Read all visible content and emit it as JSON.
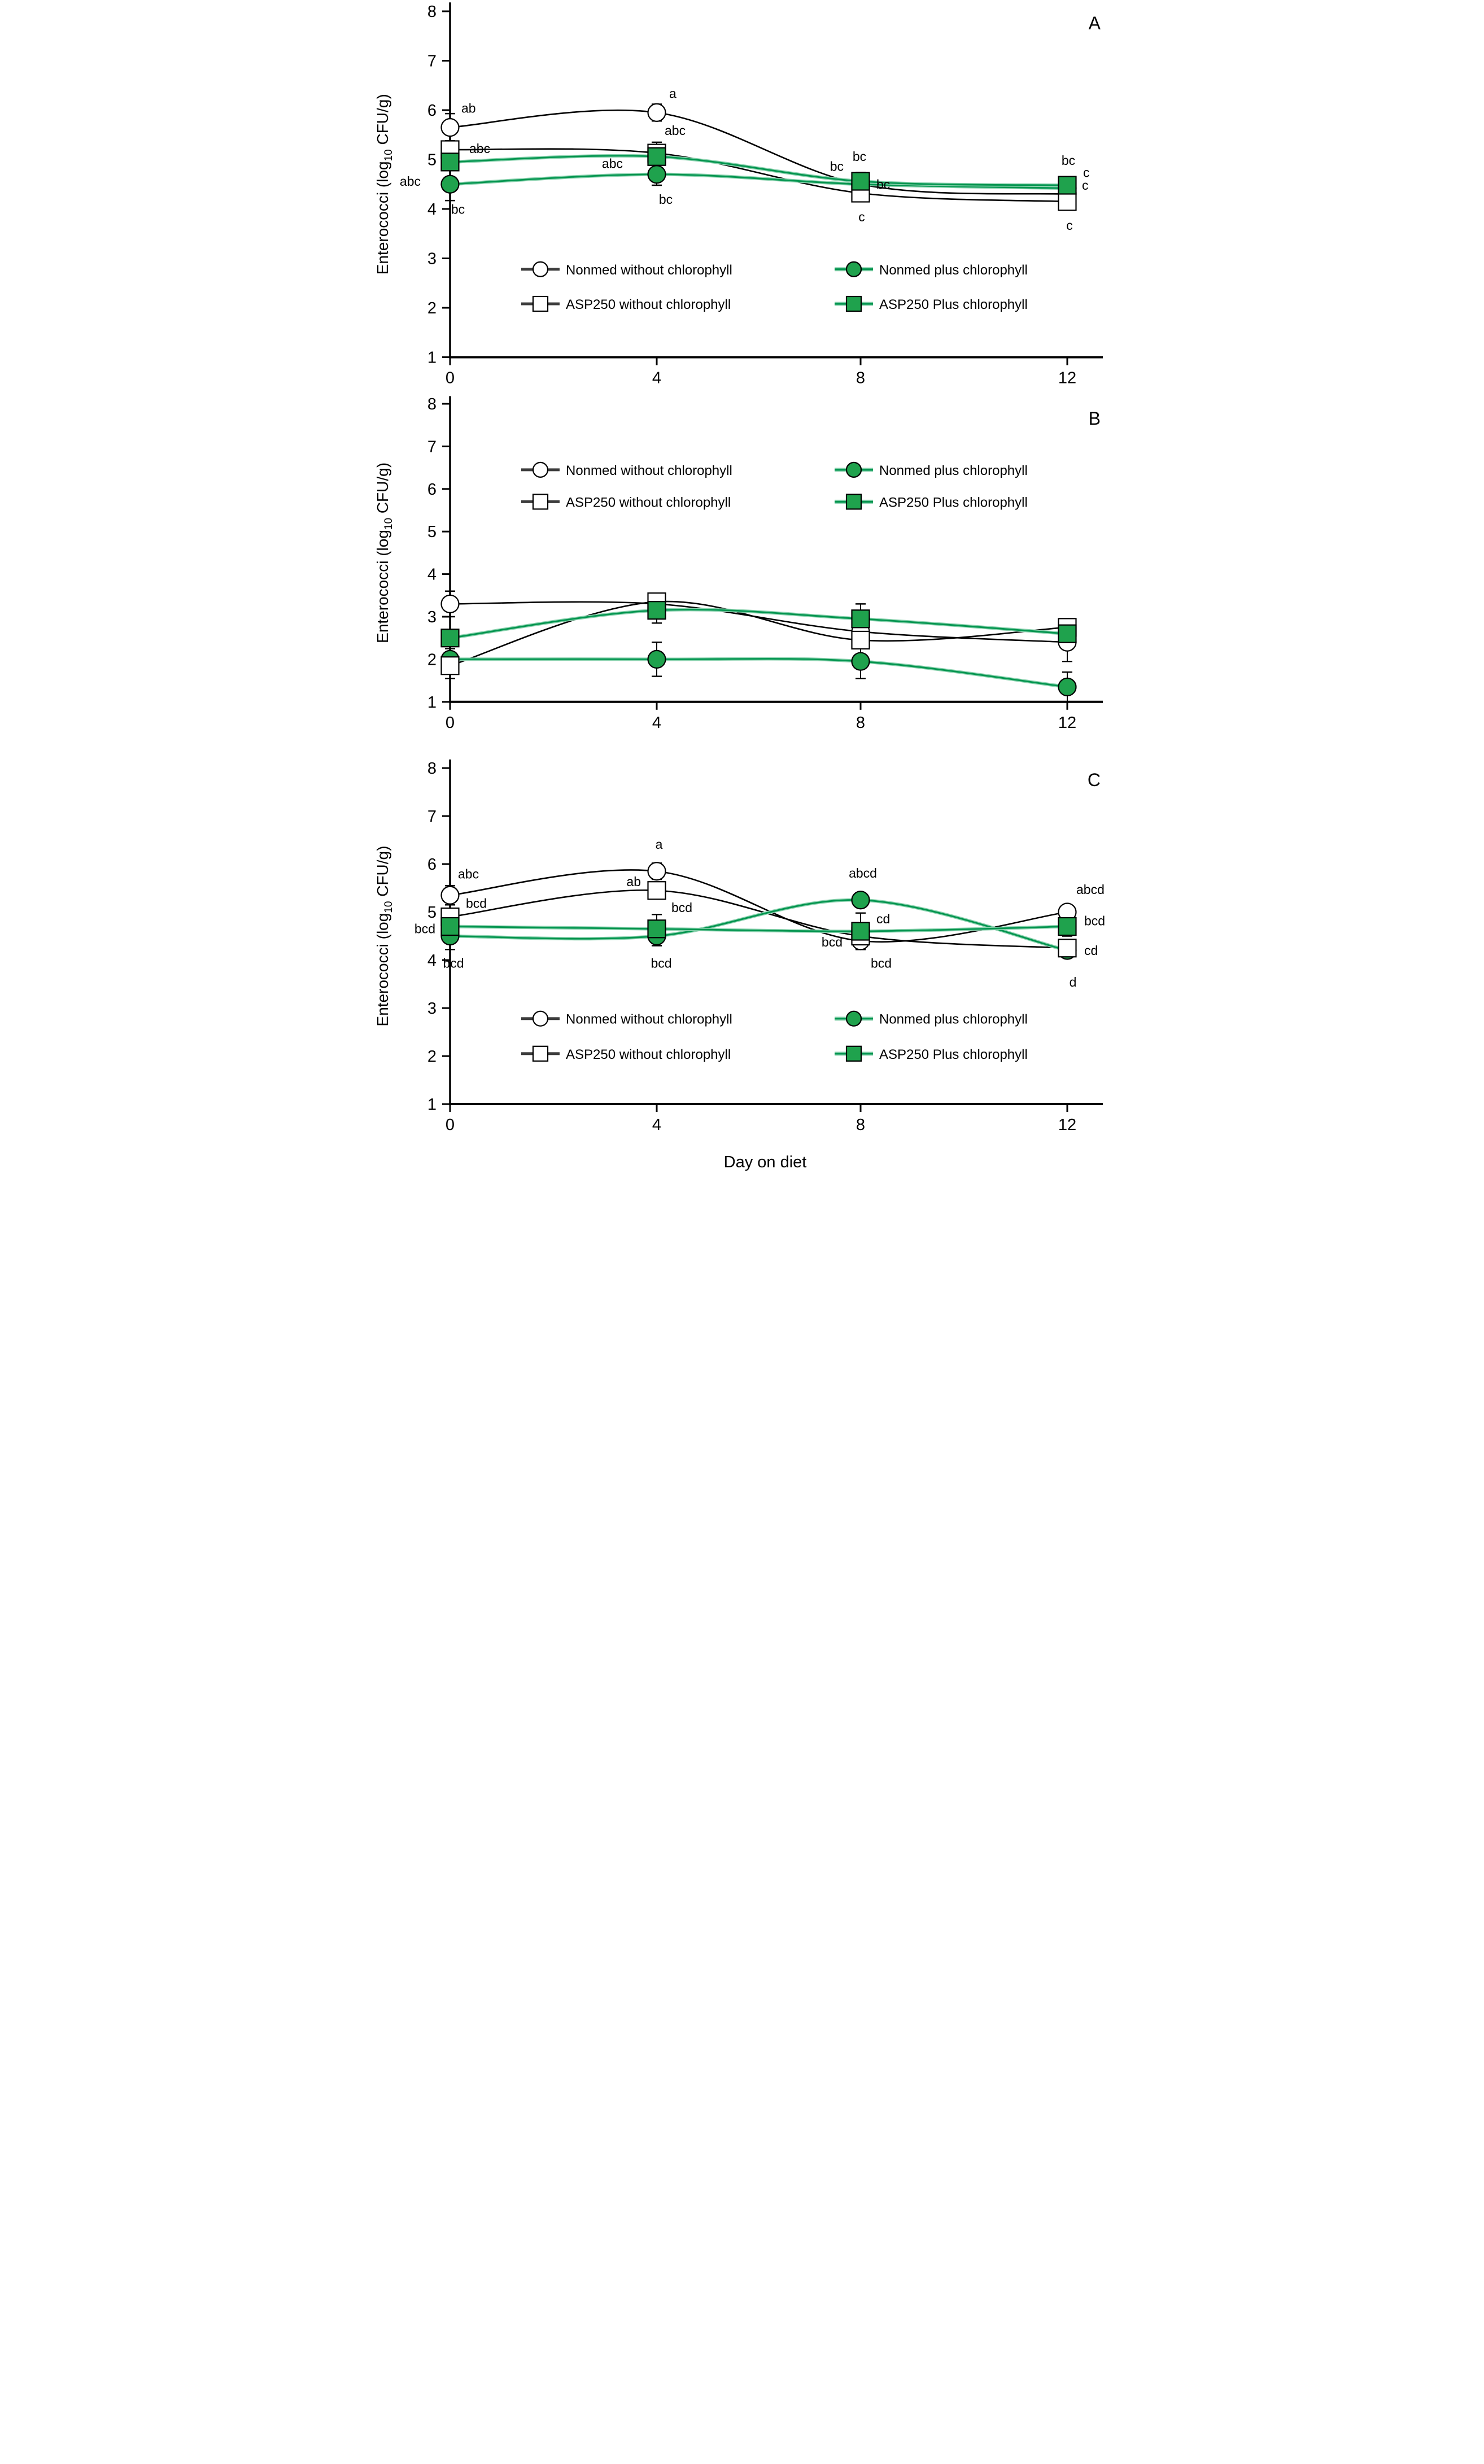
{
  "figure": {
    "background": "#ffffff",
    "y_axis_label_parts": [
      "Enterococci (log",
      "10",
      " CFU/g)"
    ],
    "x_axis_label": "Day on diet"
  },
  "colors": {
    "black": "#000000",
    "green_line": "#00944e",
    "green_glow": "#8ad2ae",
    "green_fill": "#1fa24d",
    "white_fill": "#ffffff",
    "legend_line_dark": "#3c3c3c"
  },
  "series_meta": [
    {
      "id": "nonmed_wo",
      "label": "Nonmed without chlorophyll",
      "marker": "circle",
      "filled": false,
      "color": "black",
      "legend_col": 0,
      "legend_row": 0
    },
    {
      "id": "asp_wo",
      "label": "ASP250 without chlorophyll",
      "marker": "square",
      "filled": false,
      "color": "black",
      "legend_col": 0,
      "legend_row": 1
    },
    {
      "id": "nonmed_plus",
      "label": "Nonmed plus chlorophyll",
      "marker": "circle",
      "filled": true,
      "color": "green",
      "legend_col": 1,
      "legend_row": 0
    },
    {
      "id": "asp_plus",
      "label": "ASP250 Plus chlorophyll",
      "marker": "square",
      "filled": true,
      "color": "green",
      "legend_col": 1,
      "legend_row": 1
    }
  ],
  "chart_data": [
    {
      "panel_letter": "A",
      "type": "line",
      "x": [
        0,
        4,
        8,
        12
      ],
      "x_ticks": [
        0,
        4,
        8,
        12
      ],
      "y_ticks": [
        1,
        2,
        3,
        4,
        5,
        6,
        7,
        8
      ],
      "ylim": [
        1,
        8
      ],
      "grid": false,
      "legend_position": "inside-lower-middle",
      "legend_rows_y": [
        2.78,
        2.08
      ],
      "xlabel": "",
      "series": [
        {
          "id": "nonmed_wo",
          "values": [
            5.65,
            5.95,
            4.5,
            4.3
          ],
          "errors": [
            0.28,
            0.17,
            0.12,
            0.1
          ],
          "labels": [
            "ab",
            "a",
            "bc",
            "c"
          ],
          "label_pos": [
            [
              20,
              -26,
              "start"
            ],
            [
              22,
              -26,
              "start"
            ],
            [
              -30,
              -24,
              "end"
            ],
            [
              26,
              -8,
              "start"
            ]
          ]
        },
        {
          "id": "asp_wo",
          "values": [
            5.2,
            5.13,
            4.32,
            4.15
          ],
          "errors": [
            0.18,
            0.22,
            0.12,
            0.12
          ],
          "labels": [
            "abc",
            "abc",
            "c",
            "c"
          ],
          "label_pos": [
            [
              34,
              6,
              "start"
            ],
            [
              14,
              -32,
              "start"
            ],
            [
              2,
              50,
              "middle"
            ],
            [
              4,
              50,
              "middle"
            ]
          ]
        },
        {
          "id": "nonmed_plus",
          "values": [
            4.5,
            4.7,
            4.5,
            4.42
          ],
          "errors": [
            0.33,
            0.22,
            0.12,
            0.12
          ],
          "labels": [
            "bc",
            "bc",
            "bc",
            "c"
          ],
          "label_pos": [
            [
              14,
              52,
              "middle"
            ],
            [
              16,
              52,
              "middle"
            ],
            [
              28,
              8,
              "start"
            ],
            [
              28,
              -20,
              "start"
            ]
          ]
        },
        {
          "id": "asp_plus",
          "values": [
            4.95,
            5.06,
            4.56,
            4.48
          ],
          "errors": [
            0.15,
            0.15,
            0.18,
            0.12
          ],
          "labels": [
            "abc",
            "abc",
            "bc",
            "bc"
          ],
          "label_pos": [
            [
              -52,
              42,
              "end"
            ],
            [
              -60,
              20,
              "end"
            ],
            [
              -2,
              -36,
              "middle"
            ],
            [
              2,
              -36,
              "middle"
            ]
          ]
        }
      ]
    },
    {
      "panel_letter": "B",
      "type": "line",
      "x": [
        0,
        4,
        8,
        12
      ],
      "x_ticks": [
        0,
        4,
        8,
        12
      ],
      "y_ticks": [
        1,
        2,
        3,
        4,
        5,
        6,
        7,
        8
      ],
      "ylim": [
        1,
        8
      ],
      "grid": false,
      "legend_position": "inside-upper-middle",
      "legend_rows_y": [
        6.45,
        5.7
      ],
      "xlabel": "",
      "series": [
        {
          "id": "nonmed_wo",
          "values": [
            3.3,
            3.3,
            2.65,
            2.4
          ],
          "errors": [
            0.3,
            0.2,
            0.15,
            0.45
          ],
          "labels": [
            "",
            "",
            "",
            ""
          ],
          "label_pos": [
            [
              0,
              0,
              "start"
            ],
            [
              0,
              0,
              "start"
            ],
            [
              0,
              0,
              "start"
            ],
            [
              0,
              0,
              "start"
            ]
          ]
        },
        {
          "id": "asp_wo",
          "values": [
            1.85,
            3.35,
            2.45,
            2.75
          ],
          "errors": [
            0.3,
            0.2,
            0.45,
            0.2
          ],
          "labels": [
            "",
            "",
            "",
            ""
          ],
          "label_pos": [
            [
              0,
              0,
              "start"
            ],
            [
              0,
              0,
              "start"
            ],
            [
              0,
              0,
              "start"
            ],
            [
              0,
              0,
              "start"
            ]
          ]
        },
        {
          "id": "nonmed_plus",
          "values": [
            2.0,
            2.0,
            1.95,
            1.35
          ],
          "errors": [
            0.25,
            0.4,
            0.4,
            0.35
          ],
          "labels": [
            "",
            "",
            "",
            ""
          ],
          "label_pos": [
            [
              0,
              0,
              "start"
            ],
            [
              0,
              0,
              "start"
            ],
            [
              0,
              0,
              "start"
            ],
            [
              0,
              0,
              "start"
            ]
          ]
        },
        {
          "id": "asp_plus",
          "values": [
            2.5,
            3.15,
            2.95,
            2.6
          ],
          "errors": [
            0.2,
            0.3,
            0.35,
            0.25
          ],
          "labels": [
            "",
            "",
            "",
            ""
          ],
          "label_pos": [
            [
              0,
              0,
              "start"
            ],
            [
              0,
              0,
              "start"
            ],
            [
              0,
              0,
              "start"
            ],
            [
              0,
              0,
              "start"
            ]
          ]
        }
      ]
    },
    {
      "panel_letter": "C",
      "type": "line",
      "x": [
        0,
        4,
        8,
        12
      ],
      "x_ticks": [
        0,
        4,
        8,
        12
      ],
      "y_ticks": [
        1,
        2,
        3,
        4,
        5,
        6,
        7,
        8
      ],
      "ylim": [
        1,
        8
      ],
      "grid": false,
      "legend_position": "inside-lower-middle",
      "legend_rows_y": [
        2.78,
        2.05
      ],
      "xlabel": "Day on diet",
      "series": [
        {
          "id": "nonmed_wo",
          "values": [
            5.35,
            5.85,
            4.4,
            5.0
          ],
          "errors": [
            0.2,
            0.17,
            0.1,
            0.12
          ],
          "labels": [
            "abc",
            "a",
            "bcd",
            "abcd"
          ],
          "label_pos": [
            [
              14,
              -30,
              "start"
            ],
            [
              4,
              -40,
              "middle"
            ],
            [
              -32,
              10,
              "end"
            ],
            [
              16,
              -32,
              "start"
            ]
          ]
        },
        {
          "id": "asp_wo",
          "values": [
            4.9,
            5.45,
            4.5,
            4.25
          ],
          "errors": [
            0.15,
            0.15,
            0.15,
            0.1
          ],
          "labels": [
            "bcd",
            "ab",
            "bcd",
            "cd"
          ],
          "label_pos": [
            [
              28,
              -16,
              "start"
            ],
            [
              -28,
              -8,
              "end"
            ],
            [
              18,
              56,
              "start"
            ],
            [
              30,
              12,
              "start"
            ]
          ]
        },
        {
          "id": "nonmed_plus",
          "values": [
            4.5,
            4.5,
            5.25,
            4.2
          ],
          "errors": [
            0.28,
            0.2,
            0.15,
            0.12
          ],
          "labels": [
            "bcd",
            "bcd",
            "abcd",
            "d"
          ],
          "label_pos": [
            [
              6,
              56,
              "middle"
            ],
            [
              8,
              56,
              "middle"
            ],
            [
              4,
              -40,
              "middle"
            ],
            [
              10,
              64,
              "middle"
            ]
          ]
        },
        {
          "id": "asp_plus",
          "values": [
            4.7,
            4.65,
            4.6,
            4.7
          ],
          "errors": [
            0.15,
            0.3,
            0.38,
            0.2
          ],
          "labels": [
            "bcd",
            "bcd",
            "cd",
            "bcd"
          ],
          "label_pos": [
            [
              -26,
              12,
              "end"
            ],
            [
              26,
              -30,
              "start"
            ],
            [
              28,
              -14,
              "start"
            ],
            [
              30,
              -2,
              "start"
            ]
          ]
        }
      ]
    }
  ]
}
